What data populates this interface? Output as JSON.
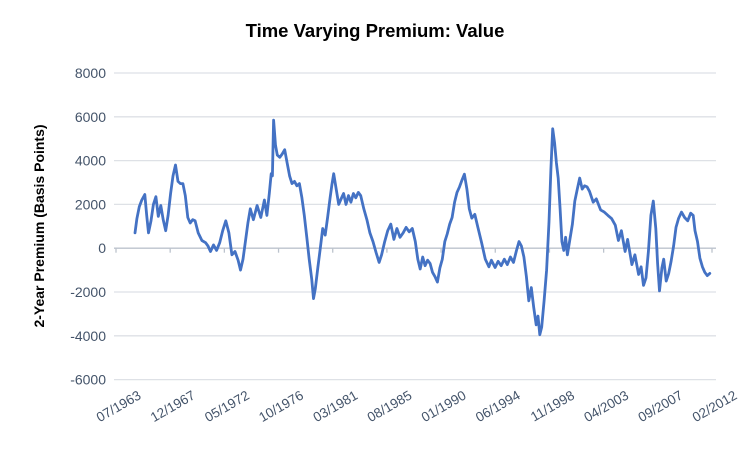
{
  "chart_data": {
    "type": "line",
    "title": "Time Varying Premium: Value",
    "xlabel": "",
    "ylabel": "2-Year Premium (Basis Points)",
    "x_tick_labels": [
      "07/1963",
      "12/1967",
      "05/1972",
      "10/1976",
      "03/1981",
      "08/1985",
      "01/1990",
      "06/1994",
      "11/1998",
      "04/2003",
      "09/2007",
      "02/2012"
    ],
    "x_tick_years": [
      1963.5,
      1967.9167,
      1972.3333,
      1976.75,
      1981.1667,
      1985.5833,
      1990.0,
      1994.4167,
      1998.8333,
      2003.25,
      2007.6667,
      2012.0833
    ],
    "xlim_years": [
      1963.5,
      2012.0833
    ],
    "y_ticks": [
      8000,
      6000,
      4000,
      2000,
      0,
      -2000,
      -4000,
      -6000
    ],
    "ylim": [
      -6000,
      8000
    ],
    "grid": "horizontal",
    "legend": "none",
    "colors": {
      "line": "#4472C4",
      "text": "#44546A",
      "gridline": "#DEE1E6",
      "axis": "#BCC3CD",
      "background": "#FFFFFF"
    },
    "series": [
      {
        "name": "2-Year Premium (Basis Points)",
        "points": [
          [
            1965.05,
            700
          ],
          [
            1965.2,
            1350
          ],
          [
            1965.4,
            1900
          ],
          [
            1965.6,
            2200
          ],
          [
            1965.85,
            2450
          ],
          [
            1966.0,
            1500
          ],
          [
            1966.15,
            700
          ],
          [
            1966.35,
            1250
          ],
          [
            1966.55,
            2000
          ],
          [
            1966.75,
            2350
          ],
          [
            1966.95,
            1450
          ],
          [
            1967.15,
            1950
          ],
          [
            1967.35,
            1300
          ],
          [
            1967.55,
            800
          ],
          [
            1967.75,
            1500
          ],
          [
            1967.95,
            2500
          ],
          [
            1968.15,
            3300
          ],
          [
            1968.35,
            3800
          ],
          [
            1968.55,
            3050
          ],
          [
            1968.75,
            2950
          ],
          [
            1968.95,
            2950
          ],
          [
            1969.15,
            2400
          ],
          [
            1969.35,
            1400
          ],
          [
            1969.55,
            1150
          ],
          [
            1969.75,
            1300
          ],
          [
            1969.95,
            1250
          ],
          [
            1970.2,
            700
          ],
          [
            1970.5,
            350
          ],
          [
            1970.8,
            250
          ],
          [
            1971.0,
            100
          ],
          [
            1971.2,
            -150
          ],
          [
            1971.45,
            150
          ],
          [
            1971.7,
            -100
          ],
          [
            1971.95,
            250
          ],
          [
            1972.2,
            800
          ],
          [
            1972.45,
            1250
          ],
          [
            1972.7,
            700
          ],
          [
            1972.95,
            -300
          ],
          [
            1973.2,
            -150
          ],
          [
            1973.45,
            -550
          ],
          [
            1973.65,
            -1000
          ],
          [
            1973.85,
            -500
          ],
          [
            1974.05,
            300
          ],
          [
            1974.25,
            1150
          ],
          [
            1974.45,
            1800
          ],
          [
            1974.7,
            1300
          ],
          [
            1975.0,
            1950
          ],
          [
            1975.3,
            1400
          ],
          [
            1975.6,
            2200
          ],
          [
            1975.8,
            1500
          ],
          [
            1976.0,
            2500
          ],
          [
            1976.15,
            3400
          ],
          [
            1976.25,
            3300
          ],
          [
            1976.35,
            5850
          ],
          [
            1976.5,
            4700
          ],
          [
            1976.65,
            4250
          ],
          [
            1976.85,
            4150
          ],
          [
            1977.05,
            4300
          ],
          [
            1977.25,
            4500
          ],
          [
            1977.45,
            3900
          ],
          [
            1977.65,
            3300
          ],
          [
            1977.85,
            2950
          ],
          [
            1978.05,
            3050
          ],
          [
            1978.25,
            2850
          ],
          [
            1978.45,
            2950
          ],
          [
            1978.65,
            2300
          ],
          [
            1978.85,
            1500
          ],
          [
            1979.05,
            500
          ],
          [
            1979.25,
            -500
          ],
          [
            1979.45,
            -1400
          ],
          [
            1979.6,
            -2300
          ],
          [
            1979.75,
            -1850
          ],
          [
            1979.95,
            -900
          ],
          [
            1980.15,
            0
          ],
          [
            1980.35,
            900
          ],
          [
            1980.55,
            600
          ],
          [
            1980.75,
            1400
          ],
          [
            1980.95,
            2300
          ],
          [
            1981.1,
            2900
          ],
          [
            1981.25,
            3400
          ],
          [
            1981.45,
            2700
          ],
          [
            1981.65,
            2000
          ],
          [
            1981.85,
            2250
          ],
          [
            1982.05,
            2500
          ],
          [
            1982.25,
            2000
          ],
          [
            1982.45,
            2400
          ],
          [
            1982.65,
            2100
          ],
          [
            1982.85,
            2500
          ],
          [
            1983.05,
            2300
          ],
          [
            1983.25,
            2550
          ],
          [
            1983.45,
            2400
          ],
          [
            1983.7,
            1800
          ],
          [
            1983.95,
            1300
          ],
          [
            1984.2,
            700
          ],
          [
            1984.45,
            300
          ],
          [
            1984.7,
            -200
          ],
          [
            1984.95,
            -650
          ],
          [
            1985.15,
            -300
          ],
          [
            1985.4,
            300
          ],
          [
            1985.65,
            800
          ],
          [
            1985.9,
            1100
          ],
          [
            1986.15,
            400
          ],
          [
            1986.4,
            900
          ],
          [
            1986.65,
            500
          ],
          [
            1986.9,
            700
          ],
          [
            1987.15,
            950
          ],
          [
            1987.4,
            750
          ],
          [
            1987.65,
            900
          ],
          [
            1987.9,
            300
          ],
          [
            1988.1,
            -500
          ],
          [
            1988.3,
            -950
          ],
          [
            1988.5,
            -400
          ],
          [
            1988.7,
            -800
          ],
          [
            1988.9,
            -550
          ],
          [
            1989.1,
            -700
          ],
          [
            1989.3,
            -1100
          ],
          [
            1989.5,
            -1300
          ],
          [
            1989.7,
            -1550
          ],
          [
            1989.9,
            -900
          ],
          [
            1990.1,
            -500
          ],
          [
            1990.3,
            300
          ],
          [
            1990.5,
            650
          ],
          [
            1990.7,
            1100
          ],
          [
            1990.9,
            1400
          ],
          [
            1991.1,
            2100
          ],
          [
            1991.3,
            2550
          ],
          [
            1991.5,
            2800
          ],
          [
            1991.7,
            3100
          ],
          [
            1991.9,
            3380
          ],
          [
            1992.1,
            2700
          ],
          [
            1992.3,
            1800
          ],
          [
            1992.5,
            1370
          ],
          [
            1992.75,
            1550
          ],
          [
            1993.0,
            950
          ],
          [
            1993.3,
            250
          ],
          [
            1993.6,
            -500
          ],
          [
            1993.9,
            -850
          ],
          [
            1994.1,
            -550
          ],
          [
            1994.4,
            -880
          ],
          [
            1994.65,
            -600
          ],
          [
            1994.9,
            -800
          ],
          [
            1995.15,
            -500
          ],
          [
            1995.4,
            -750
          ],
          [
            1995.65,
            -400
          ],
          [
            1995.9,
            -650
          ],
          [
            1996.15,
            -100
          ],
          [
            1996.35,
            300
          ],
          [
            1996.55,
            100
          ],
          [
            1996.75,
            -400
          ],
          [
            1996.95,
            -1300
          ],
          [
            1997.15,
            -2400
          ],
          [
            1997.35,
            -1800
          ],
          [
            1997.55,
            -2700
          ],
          [
            1997.75,
            -3500
          ],
          [
            1997.9,
            -3100
          ],
          [
            1998.05,
            -3950
          ],
          [
            1998.2,
            -3600
          ],
          [
            1998.4,
            -2400
          ],
          [
            1998.6,
            -1000
          ],
          [
            1998.8,
            1200
          ],
          [
            1998.95,
            3600
          ],
          [
            1999.1,
            5450
          ],
          [
            1999.25,
            4800
          ],
          [
            1999.4,
            3900
          ],
          [
            1999.55,
            3200
          ],
          [
            1999.7,
            1800
          ],
          [
            1999.85,
            300
          ],
          [
            2000.0,
            -100
          ],
          [
            2000.15,
            500
          ],
          [
            2000.3,
            -300
          ],
          [
            2000.5,
            400
          ],
          [
            2000.7,
            1100
          ],
          [
            2000.9,
            2150
          ],
          [
            2001.1,
            2700
          ],
          [
            2001.3,
            3200
          ],
          [
            2001.5,
            2700
          ],
          [
            2001.7,
            2850
          ],
          [
            2001.9,
            2800
          ],
          [
            2002.1,
            2600
          ],
          [
            2002.4,
            2100
          ],
          [
            2002.65,
            2250
          ],
          [
            2003.0,
            1750
          ],
          [
            2003.3,
            1650
          ],
          [
            2003.6,
            1500
          ],
          [
            2003.9,
            1350
          ],
          [
            2004.2,
            1050
          ],
          [
            2004.45,
            350
          ],
          [
            2004.7,
            800
          ],
          [
            2005.0,
            -150
          ],
          [
            2005.2,
            400
          ],
          [
            2005.55,
            -750
          ],
          [
            2005.8,
            -300
          ],
          [
            2006.1,
            -1200
          ],
          [
            2006.3,
            -850
          ],
          [
            2006.5,
            -1700
          ],
          [
            2006.7,
            -1350
          ],
          [
            2006.9,
            -150
          ],
          [
            2007.1,
            1500
          ],
          [
            2007.3,
            2150
          ],
          [
            2007.5,
            900
          ],
          [
            2007.65,
            -700
          ],
          [
            2007.8,
            -1950
          ],
          [
            2008.0,
            -900
          ],
          [
            2008.15,
            -500
          ],
          [
            2008.35,
            -1500
          ],
          [
            2008.55,
            -1150
          ],
          [
            2008.75,
            -600
          ],
          [
            2008.95,
            100
          ],
          [
            2009.15,
            950
          ],
          [
            2009.35,
            1350
          ],
          [
            2009.6,
            1650
          ],
          [
            2009.85,
            1400
          ],
          [
            2010.1,
            1250
          ],
          [
            2010.35,
            1600
          ],
          [
            2010.55,
            1500
          ],
          [
            2010.7,
            800
          ],
          [
            2010.9,
            300
          ],
          [
            2011.1,
            -450
          ],
          [
            2011.3,
            -850
          ],
          [
            2011.5,
            -1100
          ],
          [
            2011.7,
            -1250
          ],
          [
            2011.9,
            -1150
          ]
        ]
      }
    ]
  }
}
